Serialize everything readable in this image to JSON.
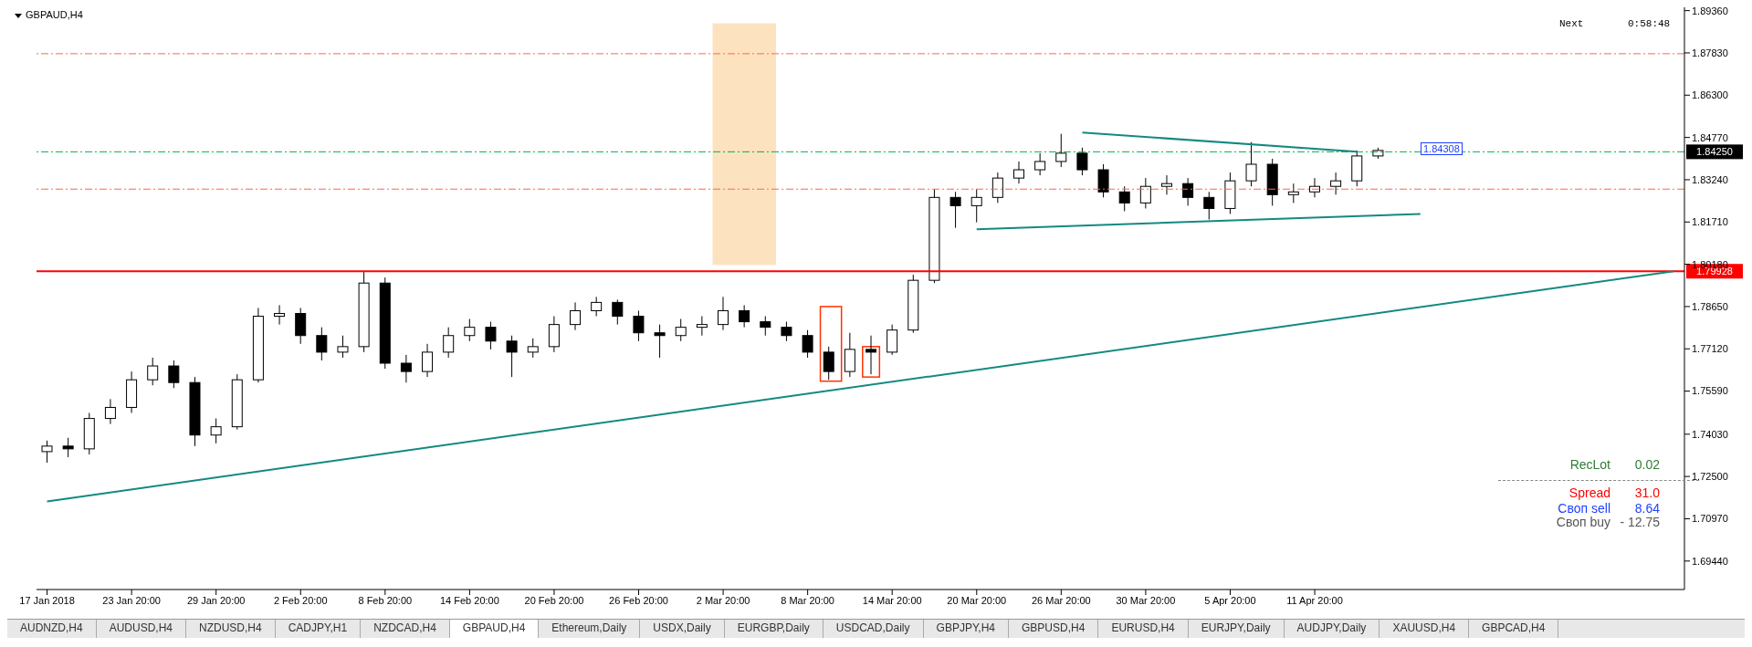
{
  "chart_data": {
    "type": "candlestick",
    "title": "GBPAUD,H4",
    "categories": [
      "17 Jan 2018",
      null,
      null,
      null,
      "23 Jan 20:00",
      null,
      null,
      null,
      "29 Jan 20:00",
      null,
      null,
      null,
      "2 Feb 20:00",
      null,
      null,
      null,
      "8 Feb 20:00",
      null,
      null,
      null,
      "14 Feb 20:00",
      null,
      null,
      null,
      "20 Feb 20:00",
      null,
      null,
      null,
      "26 Feb 20:00",
      null,
      null,
      null,
      "2 Mar 20:00",
      null,
      null,
      null,
      "8 Mar 20:00",
      null,
      null,
      null,
      "14 Mar 20:00",
      null,
      null,
      null,
      "20 Mar 20:00",
      null,
      null,
      null,
      "26 Mar 20:00",
      null,
      null,
      null,
      "30 Mar 20:00",
      null,
      null,
      null,
      "5 Apr 20:00",
      null,
      null,
      null,
      "11 Apr 20:00",
      null,
      null,
      null,
      null,
      null,
      null,
      null,
      null,
      null,
      null,
      null,
      null,
      null,
      null,
      null,
      null,
      null
    ],
    "ohlc": [
      [
        1.734,
        1.738,
        1.73,
        1.736
      ],
      [
        1.736,
        1.739,
        1.732,
        1.735
      ],
      [
        1.735,
        1.748,
        1.733,
        1.746
      ],
      [
        1.746,
        1.753,
        1.744,
        1.75
      ],
      [
        1.75,
        1.763,
        1.748,
        1.76
      ],
      [
        1.76,
        1.768,
        1.758,
        1.765
      ],
      [
        1.765,
        1.767,
        1.757,
        1.759
      ],
      [
        1.759,
        1.761,
        1.736,
        1.74
      ],
      [
        1.74,
        1.746,
        1.737,
        1.743
      ],
      [
        1.743,
        1.762,
        1.742,
        1.76
      ],
      [
        1.76,
        1.786,
        1.759,
        1.783
      ],
      [
        1.783,
        1.787,
        1.78,
        1.784
      ],
      [
        1.784,
        1.786,
        1.773,
        1.776
      ],
      [
        1.776,
        1.779,
        1.767,
        1.77
      ],
      [
        1.77,
        1.776,
        1.768,
        1.772
      ],
      [
        1.772,
        1.799,
        1.77,
        1.795
      ],
      [
        1.795,
        1.797,
        1.764,
        1.766
      ],
      [
        1.766,
        1.769,
        1.759,
        1.763
      ],
      [
        1.763,
        1.773,
        1.761,
        1.77
      ],
      [
        1.77,
        1.779,
        1.768,
        1.776
      ],
      [
        1.776,
        1.782,
        1.774,
        1.779
      ],
      [
        1.779,
        1.781,
        1.771,
        1.774
      ],
      [
        1.774,
        1.776,
        1.761,
        1.77
      ],
      [
        1.77,
        1.775,
        1.768,
        1.772
      ],
      [
        1.772,
        1.783,
        1.77,
        1.78
      ],
      [
        1.78,
        1.788,
        1.778,
        1.785
      ],
      [
        1.785,
        1.79,
        1.783,
        1.788
      ],
      [
        1.788,
        1.789,
        1.78,
        1.783
      ],
      [
        1.783,
        1.785,
        1.774,
        1.777
      ],
      [
        1.777,
        1.78,
        1.768,
        1.776
      ],
      [
        1.776,
        1.782,
        1.774,
        1.779
      ],
      [
        1.779,
        1.783,
        1.776,
        1.78
      ],
      [
        1.78,
        1.79,
        1.778,
        1.785
      ],
      [
        1.785,
        1.787,
        1.779,
        1.781
      ],
      [
        1.781,
        1.783,
        1.776,
        1.779
      ],
      [
        1.779,
        1.781,
        1.774,
        1.776
      ],
      [
        1.776,
        1.778,
        1.768,
        1.77
      ],
      [
        1.77,
        1.772,
        1.76,
        1.763
      ],
      [
        1.763,
        1.777,
        1.761,
        1.771
      ],
      [
        1.771,
        1.776,
        1.762,
        1.77
      ],
      [
        1.77,
        1.78,
        1.769,
        1.778
      ],
      [
        1.778,
        1.798,
        1.777,
        1.796
      ],
      [
        1.796,
        1.829,
        1.795,
        1.826
      ],
      [
        1.826,
        1.828,
        1.815,
        1.823
      ],
      [
        1.823,
        1.829,
        1.817,
        1.826
      ],
      [
        1.826,
        1.835,
        1.824,
        1.833
      ],
      [
        1.833,
        1.839,
        1.831,
        1.836
      ],
      [
        1.836,
        1.842,
        1.834,
        1.839
      ],
      [
        1.839,
        1.849,
        1.837,
        1.842
      ],
      [
        1.842,
        1.844,
        1.834,
        1.836
      ],
      [
        1.836,
        1.838,
        1.826,
        1.828
      ],
      [
        1.828,
        1.83,
        1.821,
        1.824
      ],
      [
        1.824,
        1.833,
        1.822,
        1.83
      ],
      [
        1.83,
        1.834,
        1.827,
        1.831
      ],
      [
        1.831,
        1.833,
        1.823,
        1.826
      ],
      [
        1.826,
        1.828,
        1.818,
        1.822
      ],
      [
        1.822,
        1.835,
        1.82,
        1.832
      ],
      [
        1.832,
        1.846,
        1.83,
        1.838
      ],
      [
        1.838,
        1.84,
        1.823,
        1.827
      ],
      [
        1.827,
        1.831,
        1.824,
        1.828
      ],
      [
        1.828,
        1.833,
        1.826,
        1.83
      ],
      [
        1.83,
        1.835,
        1.827,
        1.832
      ],
      [
        1.832,
        1.843,
        1.83,
        1.841
      ],
      [
        1.841,
        1.844,
        1.84,
        1.843
      ],
      null,
      null,
      null,
      null,
      null,
      null,
      null,
      null,
      null,
      null,
      null,
      null,
      null,
      null
    ],
    "series": [
      {
        "type": "line",
        "color": "#138a80",
        "values": [
          1.716,
          null,
          null,
          null,
          null,
          null,
          null,
          null,
          null,
          null,
          null,
          null,
          null,
          null,
          null,
          null,
          null,
          null,
          null,
          null,
          null,
          null,
          null,
          null,
          null,
          null,
          null,
          null,
          null,
          null,
          null,
          null,
          null,
          null,
          null,
          null,
          null,
          null,
          null,
          null,
          null,
          null,
          null,
          null,
          null,
          null,
          null,
          null,
          null,
          null,
          null,
          null,
          null,
          null,
          null,
          null,
          null,
          null,
          null,
          null,
          null,
          null,
          null,
          null,
          null,
          null,
          null,
          null,
          null,
          null,
          null,
          null,
          null,
          null,
          null,
          null,
          null,
          1.7993
        ]
      },
      {
        "type": "line",
        "color": "#138a80",
        "values": [
          null,
          null,
          null,
          null,
          null,
          null,
          null,
          null,
          null,
          null,
          null,
          null,
          null,
          null,
          null,
          null,
          null,
          null,
          null,
          null,
          null,
          null,
          null,
          null,
          null,
          null,
          null,
          null,
          null,
          null,
          null,
          null,
          null,
          null,
          null,
          null,
          null,
          null,
          null,
          null,
          null,
          null,
          null,
          null,
          null,
          null,
          null,
          null,
          null,
          1.8495,
          null,
          null,
          null,
          null,
          null,
          null,
          null,
          null,
          null,
          null,
          null,
          null,
          1.8425,
          null,
          null,
          null,
          null,
          null,
          null,
          null,
          null,
          null,
          null,
          null,
          null,
          null,
          null,
          null
        ]
      },
      {
        "type": "line",
        "color": "#138a80",
        "values": [
          null,
          null,
          null,
          null,
          null,
          null,
          null,
          null,
          null,
          null,
          null,
          null,
          null,
          null,
          null,
          null,
          null,
          null,
          null,
          null,
          null,
          null,
          null,
          null,
          null,
          null,
          null,
          null,
          null,
          null,
          null,
          null,
          null,
          null,
          null,
          null,
          null,
          null,
          null,
          null,
          null,
          null,
          null,
          null,
          1.8145,
          null,
          null,
          null,
          null,
          null,
          null,
          null,
          null,
          null,
          null,
          null,
          null,
          null,
          null,
          null,
          null,
          null,
          null,
          null,
          null,
          1.82,
          null,
          null,
          null,
          null,
          null,
          null,
          null,
          null,
          null,
          null,
          null,
          null
        ]
      }
    ],
    "ylim": [
      1.6841,
      1.8948
    ],
    "yticks": [
      {
        "value": 1.6944,
        "label": "1.69440"
      },
      {
        "value": 1.7097,
        "label": "1.70970"
      },
      {
        "value": 1.725,
        "label": "1.72500"
      },
      {
        "value": 1.7403,
        "label": "1.74030"
      },
      {
        "value": 1.7559,
        "label": "1.75590"
      },
      {
        "value": 1.7712,
        "label": "1.77120"
      },
      {
        "value": 1.7865,
        "label": "1.78650"
      },
      {
        "value": 1.8018,
        "label": "1.80180"
      },
      {
        "value": 1.8171,
        "label": "1.81710"
      },
      {
        "value": 1.8324,
        "label": "1.83240"
      },
      {
        "value": 1.8477,
        "label": "1.84770"
      },
      {
        "value": 1.863,
        "label": "1.86300"
      },
      {
        "value": 1.8783,
        "label": "1.87830"
      },
      {
        "value": 1.8936,
        "label": "1.89360"
      }
    ],
    "ref_lines": [
      {
        "axis": "y",
        "value": 1.79928,
        "label": "1.79928",
        "color": "#ff0000",
        "line_style": "solid"
      },
      {
        "axis": "y",
        "value": 1.8425,
        "label": "1.84250",
        "color": "#00b050",
        "line_style": "dashed"
      },
      {
        "axis": "y",
        "value": 1.878,
        "color": "#ff6a3d",
        "line_style": "dashed"
      },
      {
        "axis": "y",
        "value": 1.829,
        "color": "#ff6a3d",
        "line_style": "dashed"
      }
    ],
    "grid": false,
    "legend": false,
    "annotations": [
      "Next",
      "0:58:48",
      "RecLot",
      "0.02",
      "Spread",
      "31.0",
      "Своп sell",
      "8.64",
      "Своп buy",
      "- 12.75",
      "1.84308",
      "AUDNZD,H4",
      "AUDUSD,H4",
      "NZDUSD,H4",
      "CADJPY,H1",
      "NZDCAD,H4",
      "GBPAUD,H4",
      "Ethereum,Daily",
      "USDX,Daily",
      "EURGBP,Daily",
      "USDCAD,Daily",
      "GBPJPY,H4",
      "GBPUSD,H4",
      "EURUSD,H4",
      "EURJPY,Daily",
      "AUDJPY,Daily",
      "XAUUSD,H4",
      "GBPCAD,H4"
    ]
  }
}
